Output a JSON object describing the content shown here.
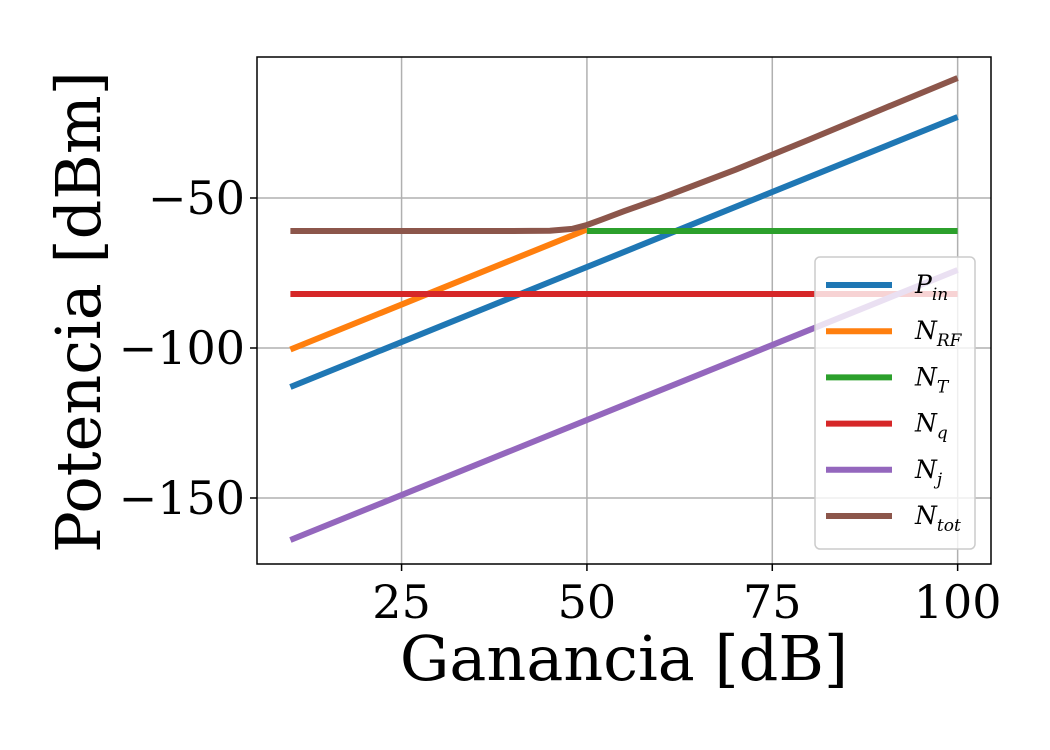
{
  "chart_data": {
    "type": "line",
    "xlabel": "Ganancia [dB]",
    "ylabel": "Potencia [dBm]",
    "xlim": [
      5.5,
      104.5
    ],
    "ylim": [
      -172,
      -3
    ],
    "xticks": [
      25,
      50,
      75,
      100
    ],
    "yticks": [
      -50,
      -100,
      -150
    ],
    "xtick_labels": [
      "25",
      "50",
      "75",
      "100"
    ],
    "ytick_labels": [
      "−50",
      "−100",
      "−150"
    ],
    "grid": true,
    "legend_position": "lower-right",
    "series": [
      {
        "name": "P",
        "sub": "in",
        "color": "#1f77b4",
        "x": [
          10,
          100
        ],
        "y": [
          -113,
          -23
        ]
      },
      {
        "name": "N",
        "sub": "RF",
        "color": "#ff7f0e",
        "x": [
          10,
          50
        ],
        "y": [
          -100.5,
          -60.5
        ]
      },
      {
        "name": "N",
        "sub": "T",
        "color": "#2ca02c",
        "x": [
          50,
          100
        ],
        "y": [
          -61,
          -61
        ]
      },
      {
        "name": "N",
        "sub": "q",
        "color": "#d62728",
        "x": [
          10,
          100
        ],
        "y": [
          -82,
          -82
        ]
      },
      {
        "name": "N",
        "sub": "j",
        "color": "#9467bd",
        "x": [
          10,
          100
        ],
        "y": [
          -164,
          -74
        ]
      },
      {
        "name": "N",
        "sub": "tot",
        "color": "#8c564b",
        "x": [
          10,
          20,
          30,
          40,
          45,
          48,
          50,
          52,
          55,
          60,
          70,
          80,
          90,
          100
        ],
        "y": [
          -61,
          -61,
          -61,
          -61,
          -60.9,
          -60.3,
          -59,
          -57.2,
          -54.4,
          -50,
          -40.6,
          -30.5,
          -20.2,
          -10
        ]
      }
    ]
  }
}
